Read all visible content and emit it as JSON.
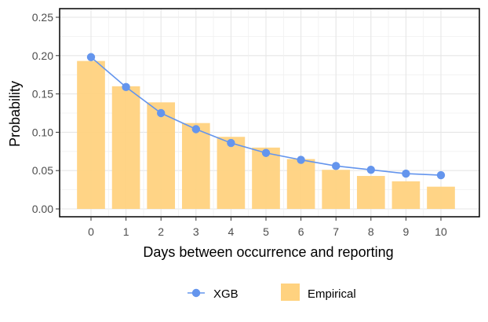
{
  "chart_data": {
    "type": "bar",
    "xlabel": "Days between occurrence and reporting",
    "ylabel": "Probability",
    "ylim": [
      0,
      0.25
    ],
    "y_ticks": [
      "0.00",
      "0.05",
      "0.10",
      "0.15",
      "0.20",
      "0.25"
    ],
    "x": [
      "0",
      "1",
      "2",
      "3",
      "4",
      "5",
      "6",
      "7",
      "8",
      "9",
      "10"
    ],
    "series": [
      {
        "name": "Empirical",
        "kind": "bar",
        "color": "#FFD27F",
        "values": [
          0.193,
          0.16,
          0.139,
          0.112,
          0.094,
          0.08,
          0.065,
          0.051,
          0.043,
          0.036,
          0.029
        ]
      },
      {
        "name": "XGB",
        "kind": "line",
        "color": "#6495ED",
        "values": [
          0.198,
          0.159,
          0.125,
          0.104,
          0.086,
          0.073,
          0.064,
          0.056,
          0.051,
          0.046,
          0.044
        ]
      }
    ],
    "grid": true,
    "legend": "bottom"
  }
}
